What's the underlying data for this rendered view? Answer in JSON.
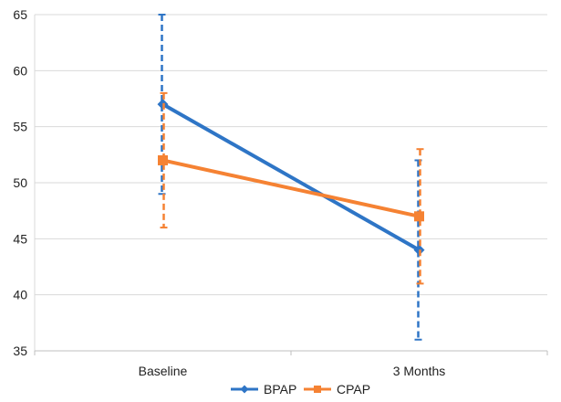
{
  "chart_data": {
    "type": "line",
    "categories": [
      "Baseline",
      "3 Months"
    ],
    "series": [
      {
        "name": "BPAP",
        "color": "#2E75C6",
        "marker": "diamond",
        "values": [
          57,
          44
        ],
        "error_low": [
          49,
          36
        ],
        "error_high": [
          65,
          52
        ]
      },
      {
        "name": "CPAP",
        "color": "#F58233",
        "marker": "square",
        "values": [
          52,
          47
        ],
        "error_low": [
          46,
          41
        ],
        "error_high": [
          58,
          53
        ]
      }
    ],
    "ylim": [
      35,
      65
    ],
    "yticks": [
      35,
      40,
      45,
      50,
      55,
      60,
      65
    ],
    "grid": true,
    "legend_position": "bottom",
    "title": "",
    "xlabel": "",
    "ylabel": ""
  }
}
